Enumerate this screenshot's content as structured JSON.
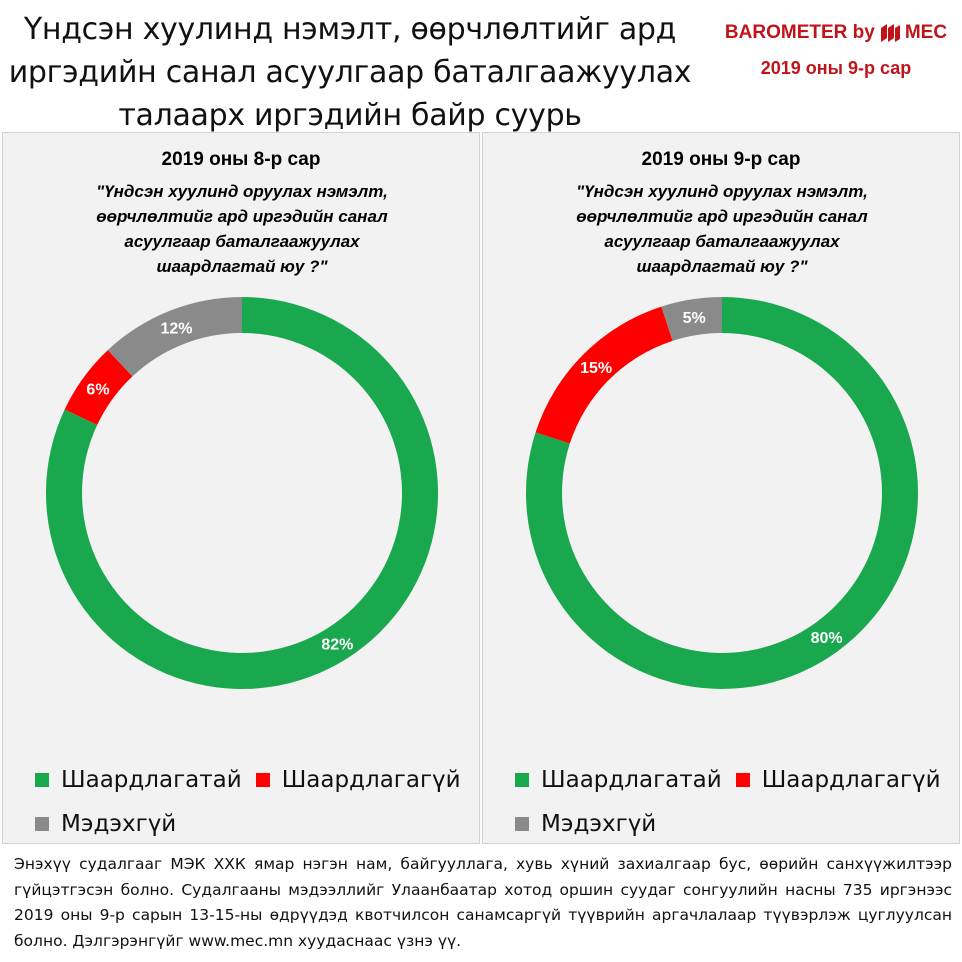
{
  "header": {
    "title_lines": [
      "Үндсэн хуулинд нэмэлт, өөрчлөлтийг ард",
      "иргэдийн санал асуулгаар баталгаажуулах",
      "талаарх иргэдийн байр суурь"
    ],
    "brand_prefix": "BAROMETER by",
    "brand_name": "MEC",
    "brand_date": "2019 оны 9-р сар",
    "brand_color": "#c0141b"
  },
  "colors": {
    "green": "#1aa84f",
    "red": "#ff0000",
    "gray": "#8a8a8a",
    "panel_bg": "#f2f2f2"
  },
  "chart_data": [
    {
      "type": "pie",
      "variant": "donut",
      "title": "2019 оны 8-р сар",
      "subtitle_lines": [
        "\"Үндсэн хуулинд оруулах нэмэлт,",
        "өөрчлөлтийг ард иргэдийн санал",
        "асуулгаар баталгаажуулах",
        "шаардлагтай юу ?\""
      ],
      "slices": [
        {
          "label": "Шаардлагатай",
          "value": 82,
          "display": "82%",
          "color": "#1aa84f"
        },
        {
          "label": "Шаардлагагүй",
          "value": 6,
          "display": "6%",
          "color": "#ff0000"
        },
        {
          "label": "Мэдэхгүй",
          "value": 12,
          "display": "12%",
          "color": "#8a8a8a"
        }
      ],
      "legend_position": "bottom"
    },
    {
      "type": "pie",
      "variant": "donut",
      "title": "2019 оны 9-р сар",
      "subtitle_lines": [
        "\"Үндсэн хуулинд оруулах нэмэлт,",
        "өөрчлөлтийг ард иргэдийн санал",
        "асуулгаар баталгаажуулах",
        "шаардлагтай юу ?\""
      ],
      "slices": [
        {
          "label": "Шаардлагатай",
          "value": 80,
          "display": "80%",
          "color": "#1aa84f"
        },
        {
          "label": "Шаардлагагүй",
          "value": 15,
          "display": "15%",
          "color": "#ff0000"
        },
        {
          "label": "Мэдэхгүй",
          "value": 5,
          "display": "5%",
          "color": "#8a8a8a"
        }
      ],
      "legend_position": "bottom"
    }
  ],
  "footer": {
    "text": "Энэхүү судалгааг МЭК ХХК ямар нэгэн нам, байгууллага, хувь хүний захиалгаар бус, өөрийн санхүүжилтээр гүйцэтгэсэн болно. Судалгааны мэдээллийг Улаанбаатар хотод оршин суудаг сонгуулийн насны 735 иргэнээс 2019 оны 9-р сарын 13-15-ны өдрүүдэд квотчилсон санамсаргүй түүврийн аргачлалаар түүвэрлэж цуглуулсан болно. Дэлгэрэнгүйг www.mec.mn хуудаснаас үзнэ үү."
  }
}
